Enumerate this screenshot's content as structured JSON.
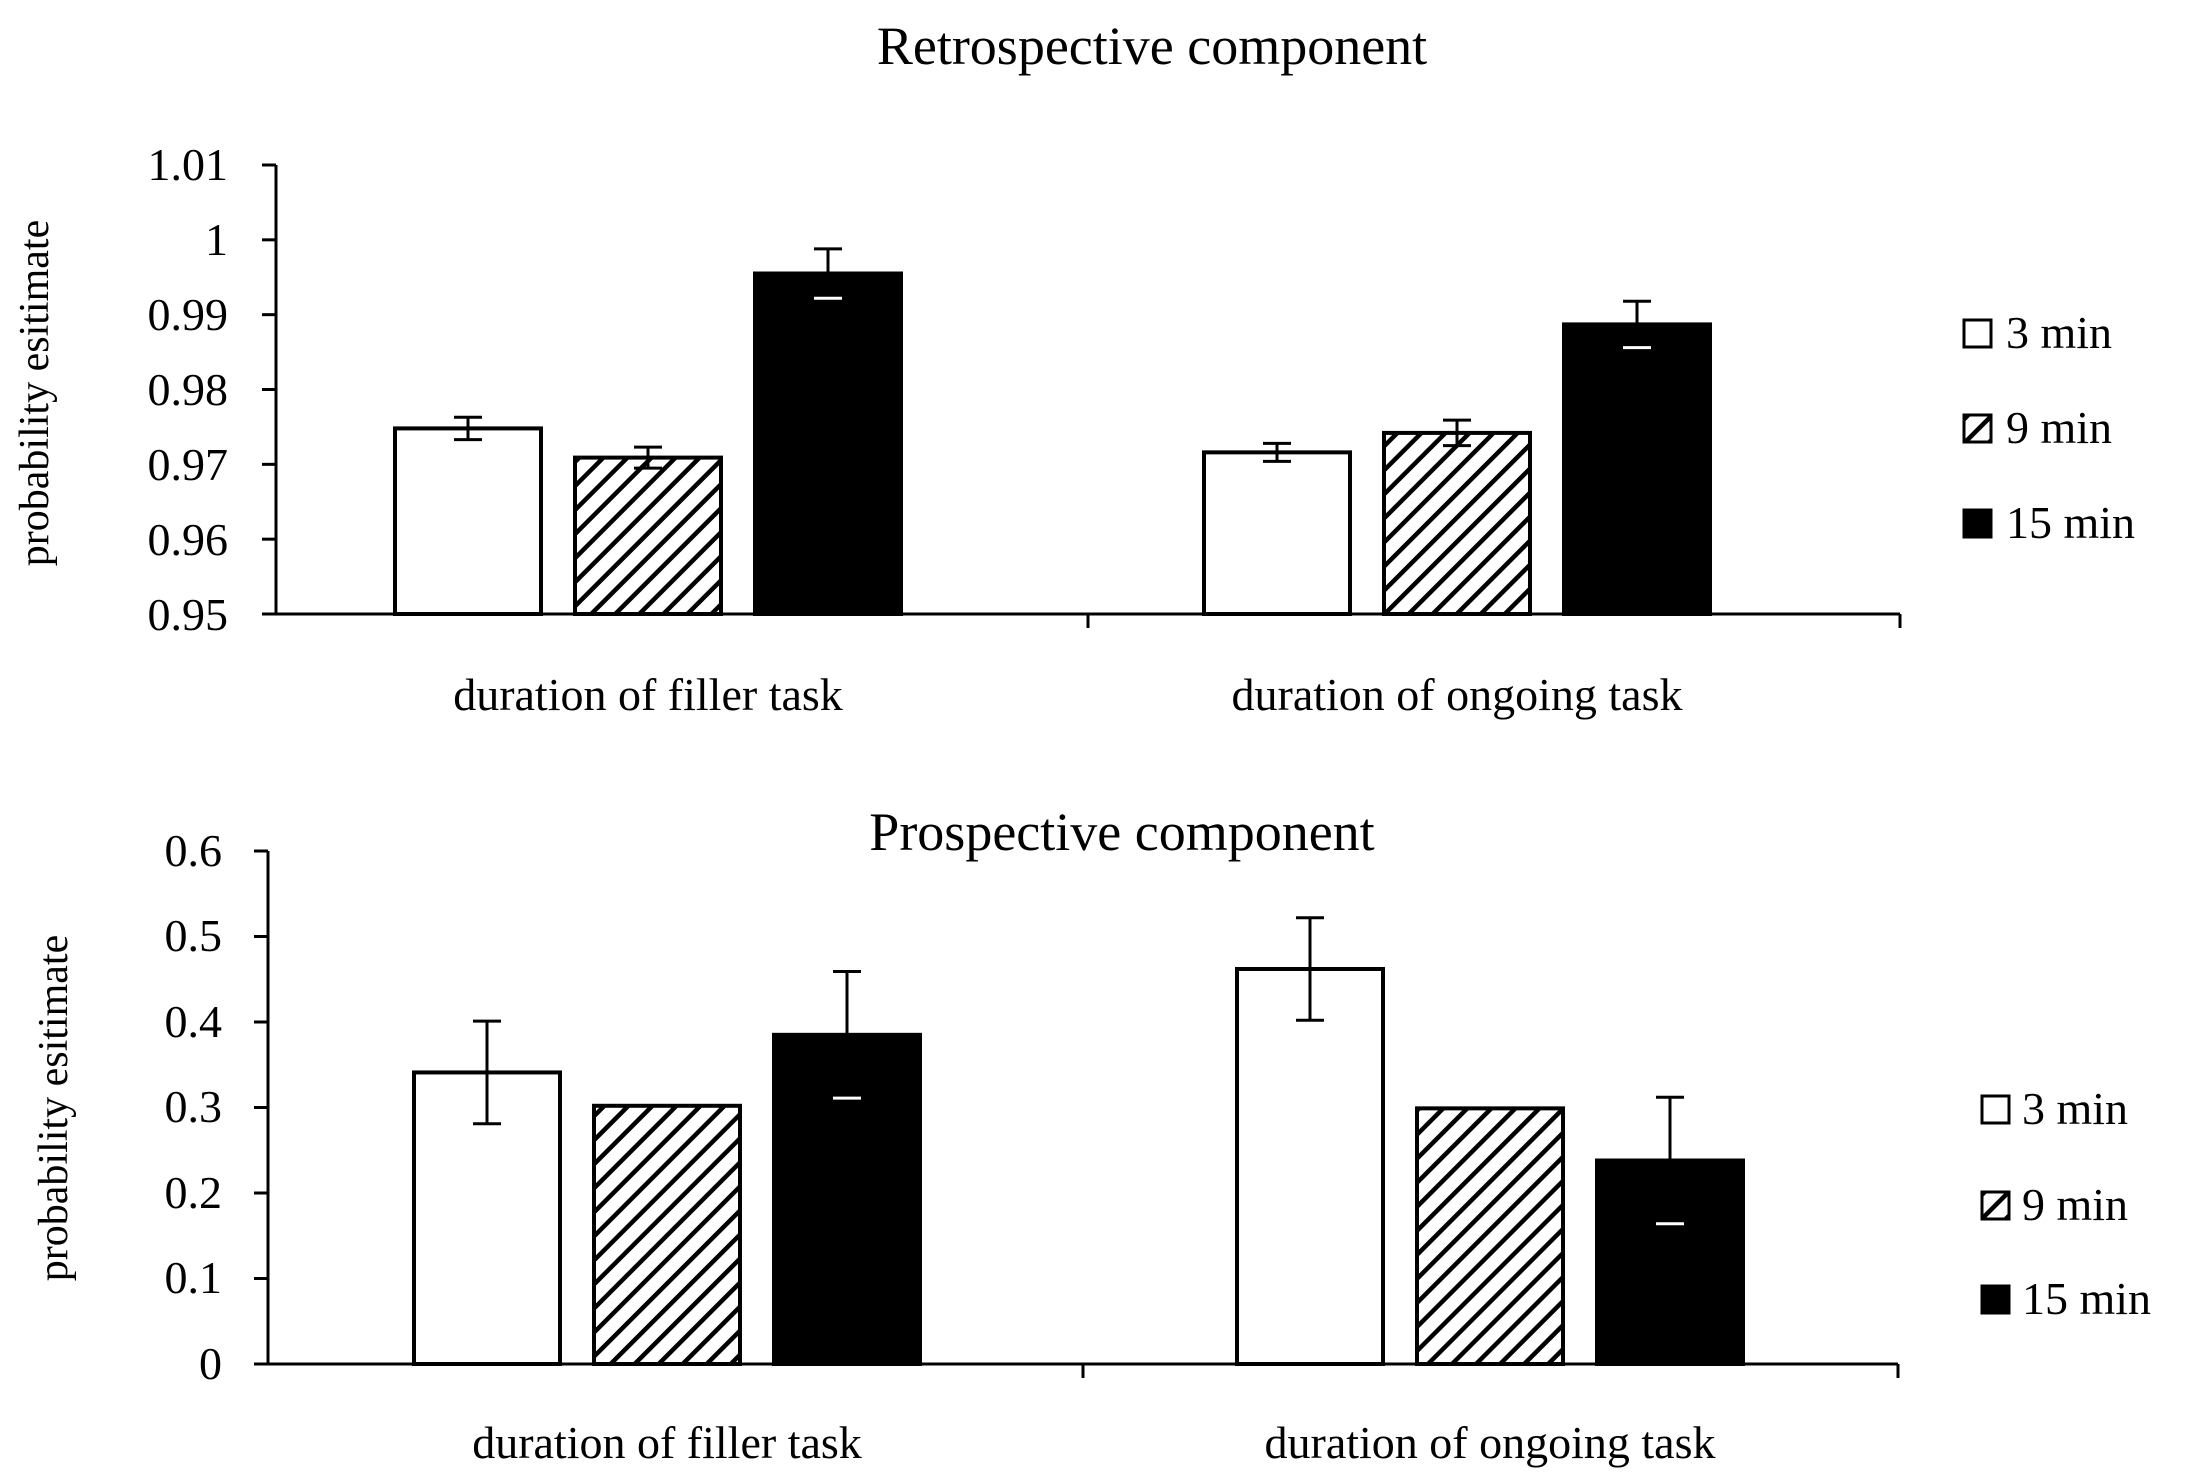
{
  "chart_data": [
    {
      "type": "bar",
      "title": "Retrospective component",
      "ylabel": "probability esitimate",
      "xlabel": "",
      "categories": [
        "duration of filler task",
        "duration of ongoing task"
      ],
      "ylim": [
        0.95,
        1.01
      ],
      "yticks": [
        "0.95",
        "0.96",
        "0.97",
        "0.98",
        "0.99",
        "1",
        "1.01"
      ],
      "grid": false,
      "legend_position": "right",
      "series": [
        {
          "name": "3 min",
          "values": [
            0.9748,
            0.9716
          ],
          "errors": [
            0.0015,
            0.0012
          ],
          "fill": "white"
        },
        {
          "name": "9 min",
          "values": [
            0.9709,
            0.9742
          ],
          "errors": [
            0.0014,
            0.0017
          ],
          "fill": "hatch"
        },
        {
          "name": "15 min",
          "values": [
            0.9955,
            0.9887
          ],
          "errors": [
            0.0033,
            0.0031
          ],
          "fill": "black"
        }
      ]
    },
    {
      "type": "bar",
      "title": "Prospective component",
      "ylabel": "probability esitimate",
      "xlabel": "",
      "categories": [
        "duration of filler task",
        "duration of ongoing task"
      ],
      "ylim": [
        0,
        0.6
      ],
      "yticks": [
        "0",
        "0.1",
        "0.2",
        "0.3",
        "0.4",
        "0.5",
        "0.6"
      ],
      "grid": false,
      "legend_position": "right",
      "series": [
        {
          "name": "3 min",
          "values": [
            0.341,
            0.462
          ],
          "errors": [
            0.06,
            0.06
          ],
          "fill": "white"
        },
        {
          "name": "9 min",
          "values": [
            0.302,
            0.299
          ],
          "errors": [
            0,
            0
          ],
          "fill": "hatch"
        },
        {
          "name": "15 min",
          "values": [
            0.385,
            0.238
          ],
          "errors": [
            0.074,
            0.074
          ],
          "fill": "black"
        }
      ]
    }
  ]
}
